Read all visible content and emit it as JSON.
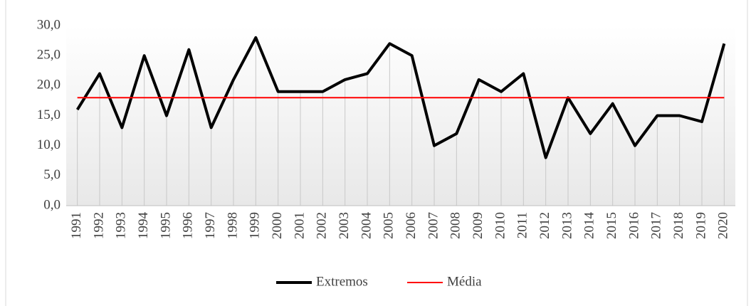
{
  "chart_data": {
    "type": "line",
    "categories": [
      "1991",
      "1992",
      "1993",
      "1994",
      "1995",
      "1996",
      "1997",
      "1998",
      "1999",
      "2000",
      "2001",
      "2002",
      "2003",
      "2004",
      "2005",
      "2006",
      "2007",
      "2008",
      "2009",
      "2010",
      "2011",
      "2012",
      "2013",
      "2014",
      "2015",
      "2016",
      "2017",
      "2018",
      "2019",
      "2020"
    ],
    "series": [
      {
        "name": "Extremos",
        "color": "#000000",
        "values": [
          16,
          22,
          13,
          25,
          15,
          26,
          13,
          21,
          28,
          19,
          19,
          19,
          21,
          22,
          27,
          25,
          10,
          12,
          21,
          19,
          22,
          8,
          18,
          12,
          17,
          10,
          15,
          15,
          14,
          27
        ]
      },
      {
        "name": "Média",
        "color": "#ff0000",
        "values": [
          18,
          18,
          18,
          18,
          18,
          18,
          18,
          18,
          18,
          18,
          18,
          18,
          18,
          18,
          18,
          18,
          18,
          18,
          18,
          18,
          18,
          18,
          18,
          18,
          18,
          18,
          18,
          18,
          18,
          18
        ]
      }
    ],
    "ylim": [
      0,
      30
    ],
    "yticks": [
      {
        "value": 0,
        "label": "0,0"
      },
      {
        "value": 5,
        "label": "5,0"
      },
      {
        "value": 10,
        "label": "10,0"
      },
      {
        "value": 15,
        "label": "15,0"
      },
      {
        "value": 20,
        "label": "20,0"
      },
      {
        "value": 25,
        "label": "25,0"
      },
      {
        "value": 30,
        "label": "30,0"
      }
    ],
    "legend": "bottom"
  }
}
